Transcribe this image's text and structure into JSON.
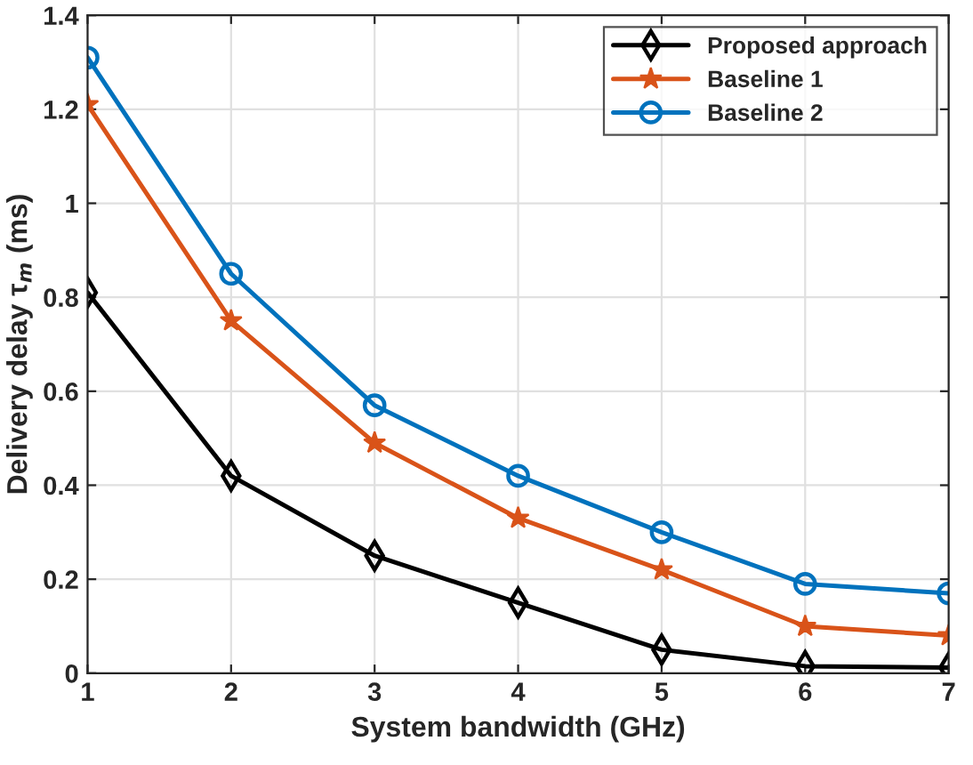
{
  "chart_data": {
    "type": "line",
    "xlabel": "System bandwidth (GHz)",
    "ylabel": "Delivery delay τ$_{m}$ (ms)",
    "x": [
      1,
      2,
      3,
      4,
      5,
      6,
      7
    ],
    "series": [
      {
        "name": "Proposed approach",
        "color": "#000000",
        "marker": "diamond",
        "values": [
          0.81,
          0.42,
          0.25,
          0.15,
          0.05,
          0.015,
          0.012
        ]
      },
      {
        "name": "Baseline 1",
        "color": "#d95319",
        "marker": "star",
        "values": [
          1.21,
          0.75,
          0.49,
          0.33,
          0.22,
          0.1,
          0.08
        ]
      },
      {
        "name": "Baseline 2",
        "color": "#0072bd",
        "marker": "circle",
        "values": [
          1.31,
          0.85,
          0.57,
          0.42,
          0.3,
          0.19,
          0.17
        ]
      }
    ],
    "xlim": [
      1,
      7
    ],
    "xticks": [
      1,
      2,
      3,
      4,
      5,
      6,
      7
    ],
    "ylim": [
      0,
      1.4
    ],
    "yticks": [
      0,
      0.2,
      0.4,
      0.6,
      0.8,
      1,
      1.2,
      1.4
    ],
    "grid": true,
    "legend": "top right",
    "line_style": "solid"
  }
}
